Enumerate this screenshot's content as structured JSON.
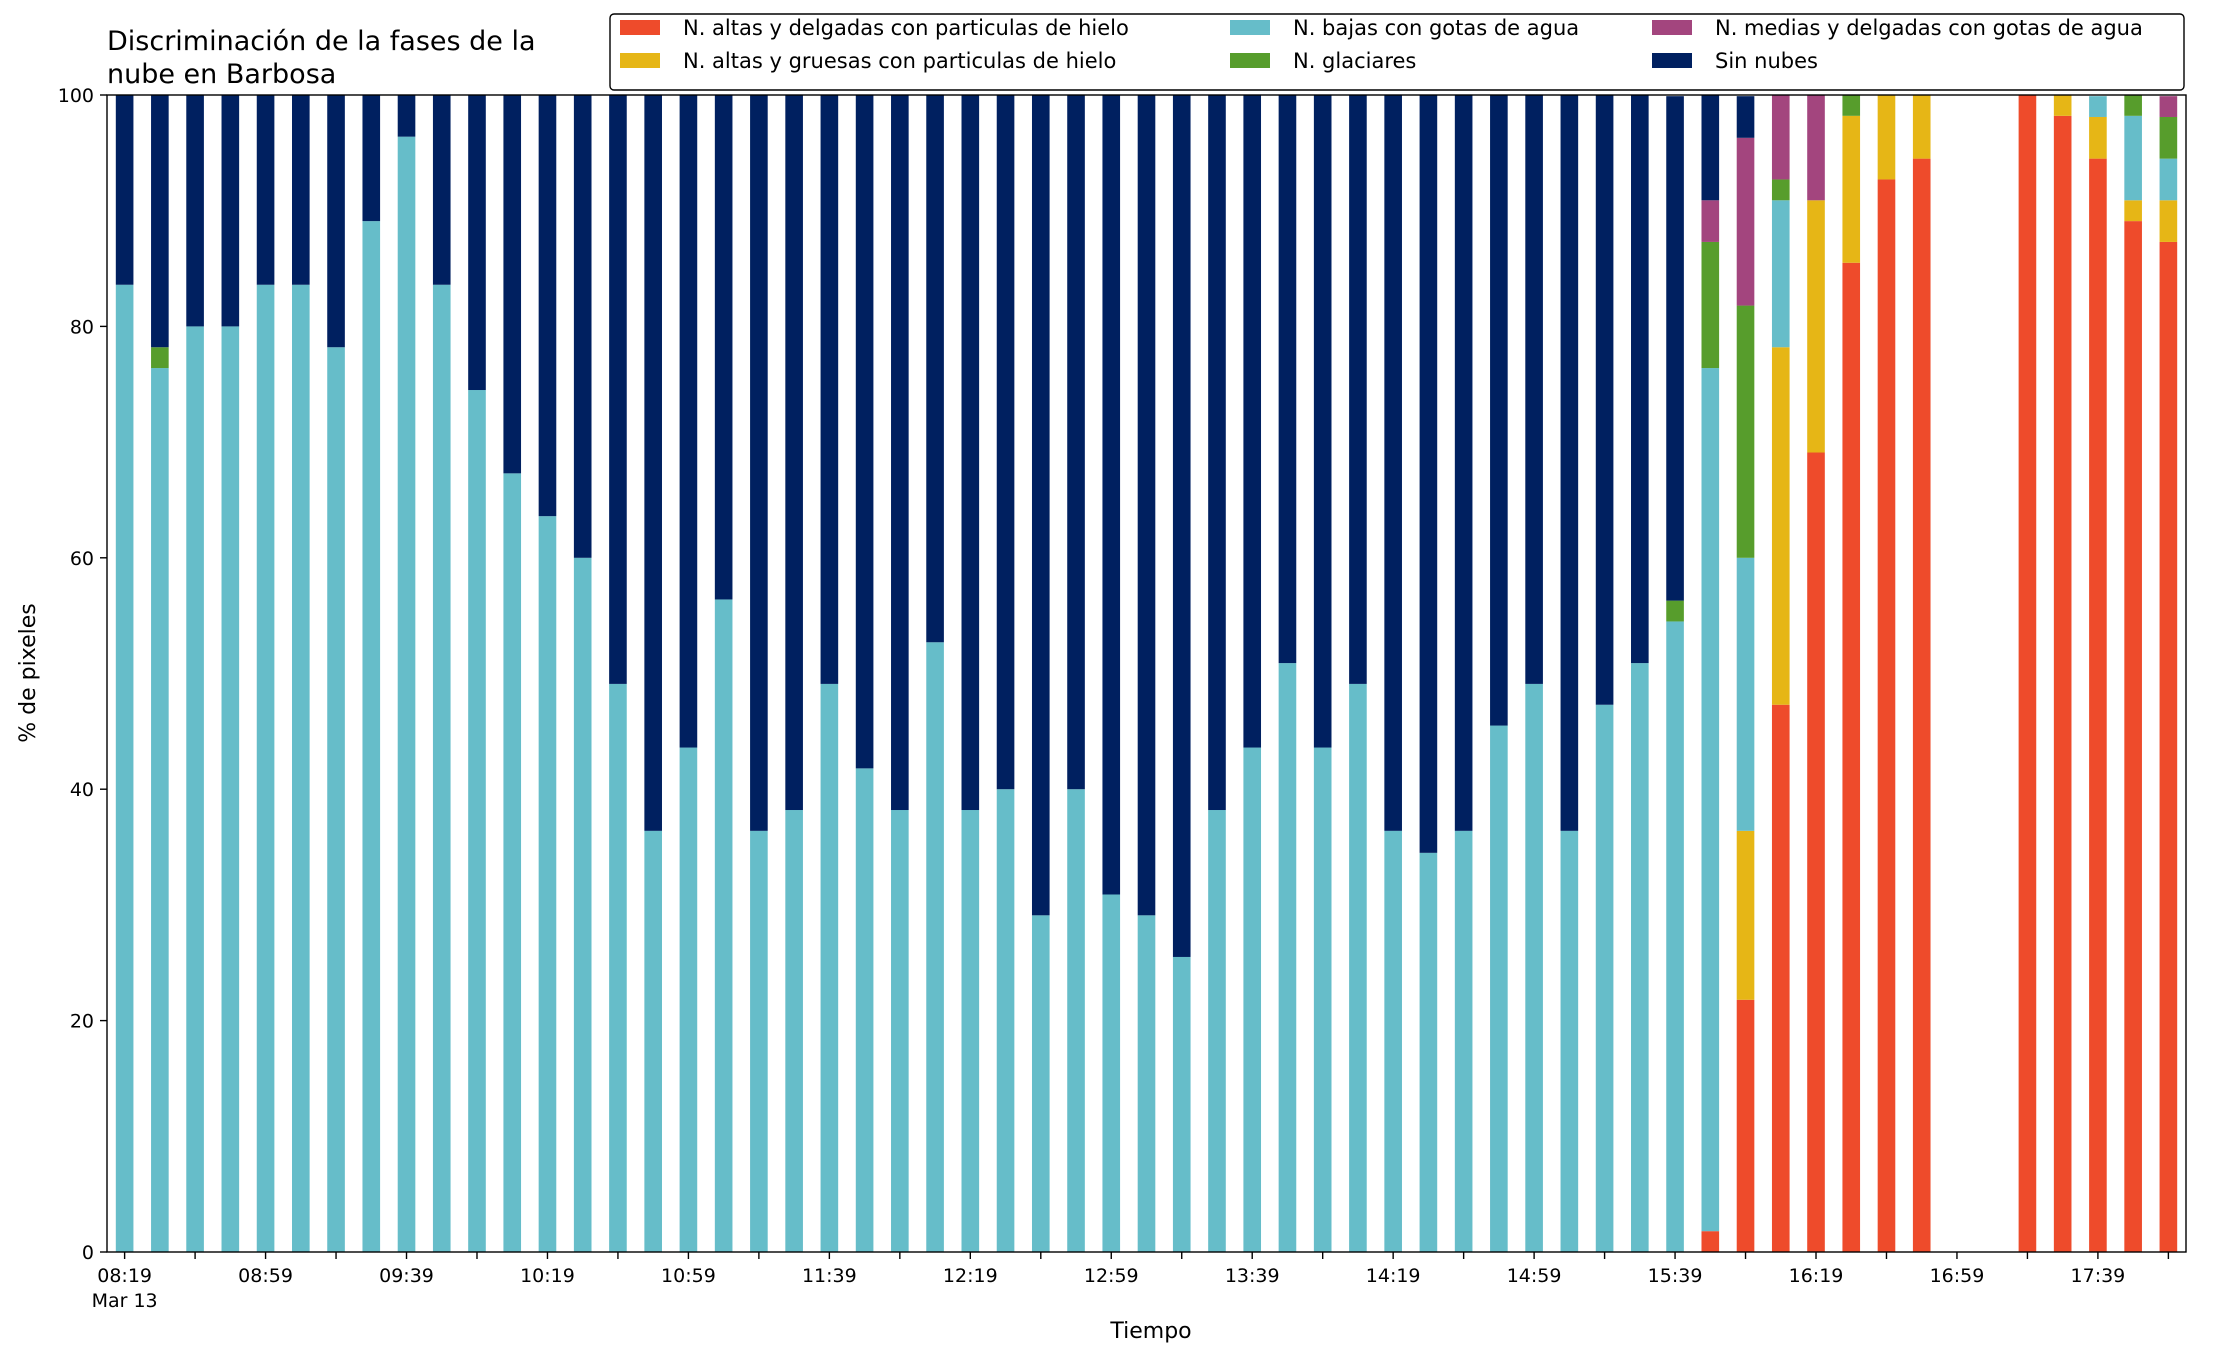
{
  "chart_data": {
    "type": "bar",
    "stacked": true,
    "title_lines": [
      "Discriminación de la fases de la",
      "nube en Barbosa"
    ],
    "xlabel": "Tiempo",
    "ylabel": "% de pixeles",
    "ylim": [
      0,
      100
    ],
    "yticks": [
      0,
      20,
      40,
      60,
      80,
      100
    ],
    "grid": false,
    "legend_position": "top-right",
    "x_range_slots": [
      -0.5,
      58.5
    ],
    "x_tick_labels": [
      {
        "slot": 0,
        "label": "08:19",
        "sublabel": "Mar 13"
      },
      {
        "slot": 4,
        "label": "08:59"
      },
      {
        "slot": 8,
        "label": "09:39"
      },
      {
        "slot": 12,
        "label": "10:19"
      },
      {
        "slot": 16,
        "label": "10:59"
      },
      {
        "slot": 20,
        "label": "11:39"
      },
      {
        "slot": 24,
        "label": "12:19"
      },
      {
        "slot": 28,
        "label": "12:59"
      },
      {
        "slot": 32,
        "label": "13:39"
      },
      {
        "slot": 36,
        "label": "14:19"
      },
      {
        "slot": 40,
        "label": "14:59"
      },
      {
        "slot": 44,
        "label": "15:39"
      },
      {
        "slot": 48,
        "label": "16:19"
      },
      {
        "slot": 52,
        "label": "16:59"
      },
      {
        "slot": 56,
        "label": "17:39"
      }
    ],
    "categories": [
      "08:19",
      "08:29",
      "08:39",
      "08:49",
      "08:59",
      "09:09",
      "09:19",
      "09:29",
      "09:39",
      "09:49",
      "09:59",
      "10:09",
      "10:19",
      "10:29",
      "10:39",
      "10:49",
      "10:59",
      "11:09",
      "11:19",
      "11:29",
      "11:39",
      "11:49",
      "11:59",
      "12:09",
      "12:19",
      "12:29",
      "12:39",
      "12:49",
      "12:59",
      "13:09",
      "13:19",
      "13:29",
      "13:39",
      "13:49",
      "13:59",
      "14:09",
      "14:19",
      "14:29",
      "14:39",
      "14:49",
      "14:59",
      "15:09",
      "15:19",
      "15:29",
      "15:39",
      "15:49",
      "15:59",
      "16:09",
      "16:19",
      "16:29",
      "16:39",
      "16:49",
      "16:59",
      "17:09",
      "17:19",
      "17:29",
      "17:39",
      "17:49",
      "17:59"
    ],
    "series": [
      {
        "name": "N. altas y delgadas con particulas de hielo",
        "color": "#ee4b2b",
        "values": [
          0,
          0,
          0,
          0,
          0,
          0,
          0,
          0,
          0,
          0,
          0,
          0,
          0,
          0,
          0,
          0,
          0,
          0,
          0,
          0,
          0,
          0,
          0,
          0,
          0,
          0,
          0,
          0,
          0,
          0,
          0,
          0,
          0,
          0,
          0,
          0,
          0,
          0,
          0,
          0,
          0,
          0,
          0,
          0,
          0,
          1.8,
          21.8,
          47.3,
          69.1,
          85.5,
          92.7,
          94.5,
          0,
          0,
          100,
          98.2,
          94.5,
          89.1,
          87.3
        ]
      },
      {
        "name": "N. altas y gruesas con particulas de hielo",
        "color": "#e6b616",
        "values": [
          0,
          0,
          0,
          0,
          0,
          0,
          0,
          0,
          0,
          0,
          0,
          0,
          0,
          0,
          0,
          0,
          0,
          0,
          0,
          0,
          0,
          0,
          0,
          0,
          0,
          0,
          0,
          0,
          0,
          0,
          0,
          0,
          0,
          0,
          0,
          0,
          0,
          0,
          0,
          0,
          0,
          0,
          0,
          0,
          0,
          0,
          14.6,
          30.9,
          21.8,
          12.7,
          7.3,
          5.5,
          0,
          0,
          0,
          1.8,
          3.6,
          1.8,
          3.6
        ]
      },
      {
        "name": "N. bajas con gotas de agua",
        "color": "#66bdc9",
        "values": [
          83.6,
          76.4,
          80,
          80,
          83.6,
          83.6,
          78.2,
          89.1,
          96.4,
          83.6,
          74.5,
          67.3,
          63.6,
          60,
          49.1,
          36.4,
          43.6,
          56.4,
          36.4,
          38.2,
          49.1,
          41.8,
          38.2,
          52.7,
          38.2,
          40,
          29.1,
          40,
          30.9,
          29.1,
          25.5,
          38.2,
          43.6,
          50.9,
          43.6,
          49.1,
          36.4,
          34.5,
          36.4,
          45.5,
          49.1,
          36.4,
          47.3,
          50.9,
          54.5,
          74.6,
          23.6,
          12.7,
          0,
          0,
          0,
          0,
          0,
          0,
          0,
          0,
          1.8,
          7.3,
          3.6
        ]
      },
      {
        "name": "N. glaciares",
        "color": "#579d2c",
        "values": [
          0,
          1.8,
          0,
          0,
          0,
          0,
          0,
          0,
          0,
          0,
          0,
          0,
          0,
          0,
          0,
          0,
          0,
          0,
          0,
          0,
          0,
          0,
          0,
          0,
          0,
          0,
          0,
          0,
          0,
          0,
          0,
          0,
          0,
          0,
          0,
          0,
          0,
          0,
          0,
          0,
          0,
          0,
          0,
          0,
          1.8,
          10.9,
          21.8,
          1.8,
          0,
          1.8,
          0,
          0,
          0,
          0,
          0,
          0,
          0,
          1.8,
          3.6
        ]
      },
      {
        "name": "N. medias y delgadas con gotas de agua",
        "color": "#a3457e",
        "values": [
          0,
          0,
          0,
          0,
          0,
          0,
          0,
          0,
          0,
          0,
          0,
          0,
          0,
          0,
          0,
          0,
          0,
          0,
          0,
          0,
          0,
          0,
          0,
          0,
          0,
          0,
          0,
          0,
          0,
          0,
          0,
          0,
          0,
          0,
          0,
          0,
          0,
          0,
          0,
          0,
          0,
          0,
          0,
          0,
          0,
          3.6,
          14.5,
          7.3,
          9.1,
          0,
          0,
          0,
          0,
          0,
          0,
          0,
          0,
          0,
          1.8
        ]
      },
      {
        "name": "Sin nubes",
        "color": "#002060",
        "values": [
          16.4,
          21.8,
          20,
          20,
          16.4,
          16.4,
          21.8,
          10.9,
          3.6,
          16.4,
          25.5,
          32.7,
          36.4,
          40,
          50.9,
          63.6,
          56.4,
          43.6,
          63.6,
          61.8,
          50.9,
          58.2,
          61.8,
          47.3,
          61.8,
          60,
          70.9,
          60,
          69.1,
          70.9,
          74.5,
          61.8,
          56.4,
          49.1,
          56.4,
          50.9,
          63.6,
          65.5,
          63.6,
          54.5,
          50.9,
          63.6,
          52.7,
          49.1,
          43.6,
          9.1,
          3.6,
          0,
          0,
          0,
          0,
          0,
          0,
          0,
          0,
          0,
          0,
          0,
          0
        ]
      }
    ]
  }
}
